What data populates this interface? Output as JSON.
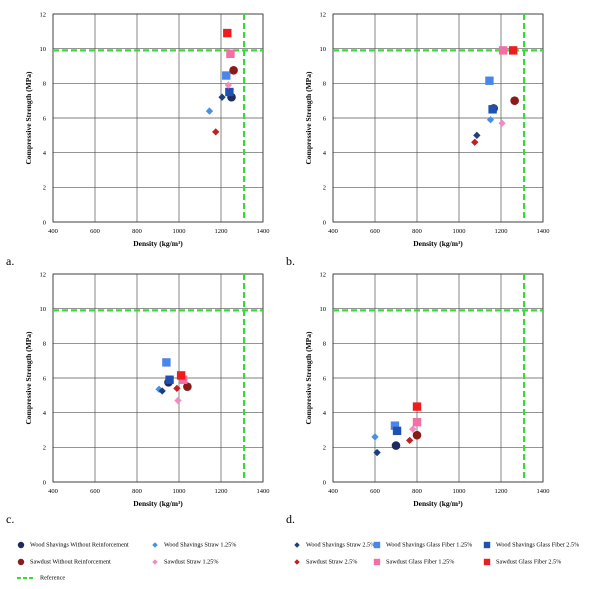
{
  "colors": {
    "wood_shavings_without": "#1f2a5e",
    "wood_shavings_straw_125": "#4a90e2",
    "wood_shavings_straw_25": "#1e3f7a",
    "wood_shavings_glass_125": "#4a86e8",
    "wood_shavings_glass_25": "#2050b0",
    "sawdust_without": "#8b1a1a",
    "sawdust_straw_125": "#f08cc0",
    "sawdust_straw_25": "#c02020",
    "sawdust_glass_125": "#f46fa3",
    "sawdust_glass_25": "#ee1c1c",
    "reference": "#33dd33"
  },
  "chart_data": [
    {
      "panel": "a.",
      "type": "scatter",
      "xlabel": "Density (kg/m³)",
      "ylabel": "Compressive Strength (MPa)",
      "xlim": [
        400,
        1400
      ],
      "ylim": [
        0,
        12
      ],
      "xticks": [
        "400",
        "600",
        "800",
        "1000",
        "1200",
        "1400"
      ],
      "yticks": [
        "0",
        "2",
        "4",
        "6",
        "8",
        "10",
        "12"
      ],
      "reference": {
        "x": 1310,
        "y": 9.9
      },
      "series": [
        {
          "key": "wood_shavings_without",
          "x": 1250,
          "y": 7.2
        },
        {
          "key": "wood_shavings_straw_125",
          "x": 1145,
          "y": 6.4
        },
        {
          "key": "wood_shavings_straw_25",
          "x": 1205,
          "y": 7.2
        },
        {
          "key": "wood_shavings_glass_125",
          "x": 1225,
          "y": 8.45
        },
        {
          "key": "wood_shavings_glass_25",
          "x": 1240,
          "y": 7.5
        },
        {
          "key": "sawdust_without",
          "x": 1260,
          "y": 8.75
        },
        {
          "key": "sawdust_straw_125",
          "x": 1235,
          "y": 7.9
        },
        {
          "key": "sawdust_straw_25",
          "x": 1175,
          "y": 5.2
        },
        {
          "key": "sawdust_glass_125",
          "x": 1245,
          "y": 9.7
        },
        {
          "key": "sawdust_glass_25",
          "x": 1230,
          "y": 10.9
        }
      ]
    },
    {
      "panel": "b.",
      "type": "scatter",
      "xlabel": "Density (kg/m³)",
      "ylabel": "Compressive Strength (MPa)",
      "xlim": [
        400,
        1400
      ],
      "ylim": [
        0,
        12
      ],
      "xticks": [
        "400",
        "600",
        "800",
        "1000",
        "1200",
        "1400"
      ],
      "yticks": [
        "0",
        "2",
        "4",
        "6",
        "8",
        "10",
        "12"
      ],
      "reference": {
        "x": 1310,
        "y": 9.9
      },
      "series": [
        {
          "key": "wood_shavings_without",
          "x": 1165,
          "y": 6.55
        },
        {
          "key": "wood_shavings_straw_125",
          "x": 1150,
          "y": 5.9
        },
        {
          "key": "wood_shavings_straw_25",
          "x": 1085,
          "y": 5.0
        },
        {
          "key": "wood_shavings_glass_125",
          "x": 1145,
          "y": 8.15
        },
        {
          "key": "wood_shavings_glass_25",
          "x": 1160,
          "y": 6.5
        },
        {
          "key": "sawdust_without",
          "x": 1265,
          "y": 7.0
        },
        {
          "key": "sawdust_straw_125",
          "x": 1205,
          "y": 5.7
        },
        {
          "key": "sawdust_straw_25",
          "x": 1075,
          "y": 4.6
        },
        {
          "key": "sawdust_glass_125",
          "x": 1210,
          "y": 9.9
        },
        {
          "key": "sawdust_glass_25",
          "x": 1258,
          "y": 9.9
        }
      ]
    },
    {
      "panel": "c.",
      "type": "scatter",
      "xlabel": "Density (kg/m³)",
      "ylabel": "Compressive Strength (MPa)",
      "xlim": [
        400,
        1400
      ],
      "ylim": [
        0,
        12
      ],
      "xticks": [
        "400",
        "600",
        "800",
        "1000",
        "1200",
        "1400"
      ],
      "yticks": [
        "0",
        "2",
        "4",
        "6",
        "8",
        "10",
        "12"
      ],
      "reference": {
        "x": 1310,
        "y": 9.9
      },
      "series": [
        {
          "key": "wood_shavings_without",
          "x": 950,
          "y": 5.75
        },
        {
          "key": "wood_shavings_straw_125",
          "x": 905,
          "y": 5.35
        },
        {
          "key": "wood_shavings_straw_25",
          "x": 920,
          "y": 5.25
        },
        {
          "key": "wood_shavings_glass_125",
          "x": 940,
          "y": 6.9
        },
        {
          "key": "wood_shavings_glass_25",
          "x": 955,
          "y": 5.9
        },
        {
          "key": "sawdust_without",
          "x": 1040,
          "y": 5.5
        },
        {
          "key": "sawdust_straw_125",
          "x": 995,
          "y": 4.7
        },
        {
          "key": "sawdust_straw_25",
          "x": 990,
          "y": 5.4
        },
        {
          "key": "sawdust_glass_125",
          "x": 1020,
          "y": 5.9
        },
        {
          "key": "sawdust_glass_25",
          "x": 1010,
          "y": 6.15
        }
      ]
    },
    {
      "panel": "d.",
      "type": "scatter",
      "xlabel": "Density (kg/m³)",
      "ylabel": "Compressive Strength (MPa)",
      "xlim": [
        400,
        1400
      ],
      "ylim": [
        0,
        12
      ],
      "xticks": [
        "400",
        "600",
        "800",
        "1000",
        "1200",
        "1400"
      ],
      "yticks": [
        "0",
        "2",
        "4",
        "6",
        "8",
        "10",
        "12"
      ],
      "reference": {
        "x": 1310,
        "y": 9.9
      },
      "series": [
        {
          "key": "wood_shavings_without",
          "x": 700,
          "y": 2.1
        },
        {
          "key": "wood_shavings_straw_125",
          "x": 600,
          "y": 2.6
        },
        {
          "key": "wood_shavings_straw_25",
          "x": 610,
          "y": 1.7
        },
        {
          "key": "wood_shavings_glass_125",
          "x": 695,
          "y": 3.25
        },
        {
          "key": "wood_shavings_glass_25",
          "x": 705,
          "y": 2.95
        },
        {
          "key": "sawdust_without",
          "x": 800,
          "y": 2.7
        },
        {
          "key": "sawdust_straw_125",
          "x": 780,
          "y": 3.05
        },
        {
          "key": "sawdust_straw_25",
          "x": 765,
          "y": 2.4
        },
        {
          "key": "sawdust_glass_125",
          "x": 800,
          "y": 3.45
        },
        {
          "key": "sawdust_glass_25",
          "x": 800,
          "y": 4.35
        }
      ]
    }
  ],
  "legend": [
    {
      "key": "wood_shavings_without",
      "marker": "circle",
      "label": "Wood Shavings Without Reinforcement"
    },
    {
      "key": "wood_shavings_straw_125",
      "marker": "diamond",
      "label": "Wood Shavings Straw 1.25%"
    },
    {
      "key": "wood_shavings_straw_25",
      "marker": "diamond",
      "label": "Wood Shavings Straw 2.5%"
    },
    {
      "key": "wood_shavings_glass_125",
      "marker": "square",
      "label": "Wood Shavings Glass Fiber 1.25%"
    },
    {
      "key": "wood_shavings_glass_25",
      "marker": "square",
      "label": "Wood Shavings Glass Fiber 2.5%"
    },
    {
      "key": "sawdust_without",
      "marker": "circle",
      "label": "Sawdust Without Reinforcement"
    },
    {
      "key": "sawdust_straw_125",
      "marker": "diamond",
      "label": "Sawdust Straw 1.25%"
    },
    {
      "key": "sawdust_straw_25",
      "marker": "diamond",
      "label": "Sawdust Straw 2.5%"
    },
    {
      "key": "sawdust_glass_125",
      "marker": "square",
      "label": "Sawdust Glass Fiber 1.25%"
    },
    {
      "key": "sawdust_glass_25",
      "marker": "square",
      "label": "Sawdust Glass Fiber 2.5%"
    },
    {
      "key": "reference",
      "marker": "dash",
      "label": "Reference"
    }
  ]
}
